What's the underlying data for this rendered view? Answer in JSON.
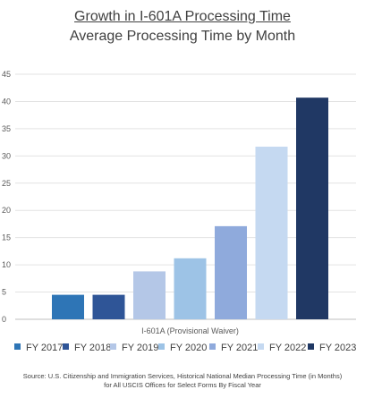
{
  "chart_data": {
    "type": "bar",
    "title": "Growth in I-601A Processing Time",
    "subtitle": "Average Processing Time by Month",
    "xlabel": "I-601A (Provisional Waiver)",
    "ylabel": "",
    "ylim": [
      0,
      45
    ],
    "yticks": [
      "0",
      "5",
      "10",
      "15",
      "20",
      "25",
      "30",
      "35",
      "40",
      "45"
    ],
    "grid": true,
    "legend_position": "bottom",
    "series": [
      {
        "name": "FY 2017",
        "value": 4.5,
        "color": "#2e75b6"
      },
      {
        "name": "FY 2018",
        "value": 4.5,
        "color": "#2f5597"
      },
      {
        "name": "FY 2019",
        "value": 8.8,
        "color": "#b4c7e7"
      },
      {
        "name": "FY 2020",
        "value": 11.2,
        "color": "#9dc3e6"
      },
      {
        "name": "FY 2021",
        "value": 17.1,
        "color": "#8faadc"
      },
      {
        "name": "FY 2022",
        "value": 31.7,
        "color": "#c5d9f1"
      },
      {
        "name": "FY 2023",
        "value": 40.7,
        "color": "#203864"
      }
    ]
  },
  "source_line1": "Source: U.S. Citizenship and Immigration Services, Historical National Median Processing Time (in Months)",
  "source_line2": "for All USCIS Offices for Select Forms By Fiscal Year"
}
